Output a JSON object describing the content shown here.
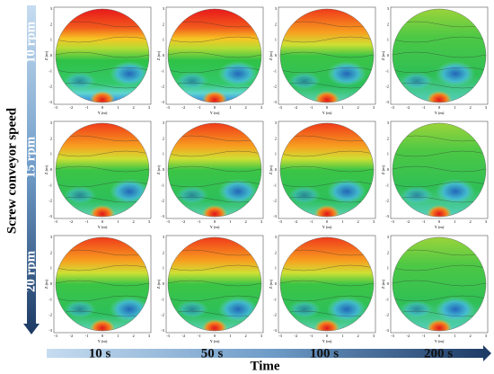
{
  "figure": {
    "y_title": "Screw conveyor speed",
    "rows": [
      "10 rpm",
      "15 rpm",
      "20 rpm"
    ],
    "columns": [
      "10 s",
      "50 s",
      "100 s",
      "200 s"
    ],
    "x_title": "Time",
    "panel_axes": {
      "x_label": "Y (m)",
      "y_label": "Z (m)",
      "x_ticks": [
        "-3",
        "-2",
        "-1",
        "0",
        "1",
        "2",
        "3"
      ],
      "y_ticks": [
        "3",
        "2",
        "1",
        "0",
        "-1",
        "-2",
        "-3"
      ]
    }
  }
}
